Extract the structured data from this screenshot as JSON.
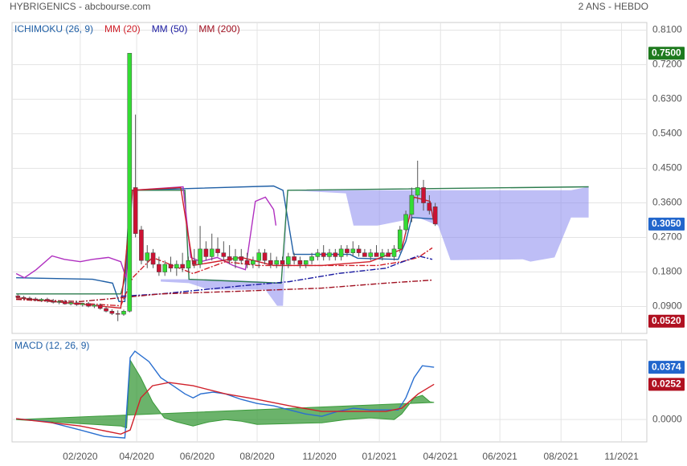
{
  "header": {
    "title": "HYBRIGENICS - abcbourse.com",
    "period": "2 ANS - HEBDO"
  },
  "chart_data": [
    {
      "type": "candlestick",
      "x": [
        1,
        2,
        3,
        4,
        5,
        6,
        7,
        8,
        9,
        10,
        11,
        12,
        13,
        14,
        15,
        16,
        17,
        18,
        19,
        20,
        21,
        22,
        23,
        24,
        25,
        26,
        27,
        28,
        29,
        30,
        31,
        32,
        33,
        34,
        35,
        36,
        37,
        38,
        39,
        40,
        41,
        42,
        43,
        44,
        45,
        46,
        47,
        48,
        49,
        50,
        51,
        52,
        53,
        54,
        55,
        56,
        57,
        58,
        59,
        60,
        61,
        62,
        63,
        64,
        65,
        66,
        67,
        68,
        69,
        70,
        71,
        72
      ],
      "open": [
        0.118,
        0.114,
        0.112,
        0.11,
        0.106,
        0.109,
        0.104,
        0.101,
        0.103,
        0.097,
        0.1,
        0.095,
        0.098,
        0.091,
        0.094,
        0.085,
        0.078,
        0.072,
        0.07,
        0.078,
        0.4,
        0.29,
        0.21,
        0.23,
        0.2,
        0.18,
        0.2,
        0.19,
        0.2,
        0.19,
        0.21,
        0.2,
        0.24,
        0.22,
        0.24,
        0.23,
        0.22,
        0.21,
        0.22,
        0.21,
        0.2,
        0.21,
        0.23,
        0.21,
        0.2,
        0.21,
        0.2,
        0.22,
        0.21,
        0.2,
        0.21,
        0.22,
        0.23,
        0.22,
        0.23,
        0.22,
        0.24,
        0.23,
        0.24,
        0.23,
        0.22,
        0.23,
        0.22,
        0.23,
        0.22,
        0.24,
        0.29,
        0.33,
        0.38,
        0.4,
        0.36,
        0.35
      ],
      "high": [
        0.122,
        0.118,
        0.116,
        0.114,
        0.112,
        0.113,
        0.11,
        0.106,
        0.108,
        0.104,
        0.105,
        0.1,
        0.102,
        0.097,
        0.098,
        0.09,
        0.083,
        0.08,
        0.082,
        0.75,
        0.59,
        0.3,
        0.25,
        0.24,
        0.22,
        0.21,
        0.22,
        0.21,
        0.23,
        0.22,
        0.24,
        0.3,
        0.26,
        0.28,
        0.27,
        0.26,
        0.25,
        0.24,
        0.24,
        0.23,
        0.22,
        0.24,
        0.24,
        0.23,
        0.22,
        0.22,
        0.23,
        0.23,
        0.22,
        0.21,
        0.23,
        0.24,
        0.25,
        0.24,
        0.24,
        0.25,
        0.25,
        0.26,
        0.25,
        0.24,
        0.24,
        0.25,
        0.24,
        0.24,
        0.25,
        0.3,
        0.34,
        0.4,
        0.47,
        0.42,
        0.38,
        0.36
      ],
      "low": [
        0.112,
        0.108,
        0.106,
        0.104,
        0.102,
        0.1,
        0.098,
        0.096,
        0.095,
        0.093,
        0.092,
        0.09,
        0.088,
        0.086,
        0.082,
        0.075,
        0.068,
        0.052,
        0.066,
        0.075,
        0.27,
        0.2,
        0.19,
        0.19,
        0.17,
        0.17,
        0.18,
        0.17,
        0.18,
        0.18,
        0.19,
        0.19,
        0.21,
        0.21,
        0.22,
        0.21,
        0.2,
        0.19,
        0.2,
        0.19,
        0.19,
        0.19,
        0.2,
        0.19,
        0.19,
        0.19,
        0.19,
        0.2,
        0.19,
        0.19,
        0.2,
        0.21,
        0.21,
        0.21,
        0.21,
        0.21,
        0.22,
        0.22,
        0.22,
        0.22,
        0.21,
        0.22,
        0.21,
        0.22,
        0.21,
        0.23,
        0.28,
        0.31,
        0.36,
        0.34,
        0.33,
        0.3
      ],
      "close": [
        0.114,
        0.112,
        0.11,
        0.106,
        0.109,
        0.104,
        0.101,
        0.103,
        0.097,
        0.1,
        0.095,
        0.098,
        0.091,
        0.094,
        0.085,
        0.078,
        0.072,
        0.07,
        0.078,
        0.75,
        0.28,
        0.21,
        0.23,
        0.2,
        0.18,
        0.2,
        0.19,
        0.2,
        0.19,
        0.21,
        0.2,
        0.24,
        0.22,
        0.24,
        0.23,
        0.22,
        0.21,
        0.22,
        0.21,
        0.2,
        0.21,
        0.23,
        0.21,
        0.2,
        0.21,
        0.2,
        0.22,
        0.21,
        0.2,
        0.21,
        0.22,
        0.23,
        0.22,
        0.23,
        0.22,
        0.24,
        0.23,
        0.24,
        0.23,
        0.22,
        0.23,
        0.22,
        0.23,
        0.22,
        0.24,
        0.29,
        0.33,
        0.38,
        0.4,
        0.36,
        0.34,
        0.305
      ],
      "up_color": "#33dd33",
      "down_color": "#cc1133",
      "xlim": [
        0,
        108
      ],
      "ylim": [
        0.02,
        0.83
      ],
      "yticks": [
        {
          "value": 0.09,
          "label": "0.0900"
        },
        {
          "value": 0.18,
          "label": "0.1800"
        },
        {
          "value": 0.27,
          "label": "0.2700"
        },
        {
          "value": 0.36,
          "label": "0.3600"
        },
        {
          "value": 0.45,
          "label": "0.4500"
        },
        {
          "value": 0.54,
          "label": "0.5400"
        },
        {
          "value": 0.63,
          "label": "0.6300"
        },
        {
          "value": 0.72,
          "label": "0.7200"
        },
        {
          "value": 0.81,
          "label": "0.8100"
        }
      ],
      "grid": true,
      "overlays": [
        {
          "name": "ICHIMOKU (26, 9)",
          "color": "#1f5fa6",
          "lines": [
            {
              "color": "#1f5fa6",
              "x": [
                0.7,
                13.7,
                17.1,
                18.2,
                19.2,
                20.1,
                44.5,
                46.1,
                47.9,
                57.5,
                58.8,
                65.7,
                67.0,
                68.0,
                71.8
              ],
              "values": [
                0.165,
                0.161,
                0.151,
                0.103,
                0.103,
                0.393,
                0.404,
                0.393,
                0.226,
                0.226,
                0.216,
                0.213,
                0.26,
                0.322,
                0.318
              ]
            },
            {
              "color": "#2e7d4f",
              "x": [
                0.7,
                18.5,
                19.2,
                20.1,
                29.4,
                30.1,
                45.8,
                46.9,
                98.1
              ],
              "values": [
                0.123,
                0.123,
                0.161,
                0.393,
                0.393,
                0.161,
                0.151,
                0.393,
                0.402
              ]
            },
            {
              "color": "#b030c0",
              "x": [
                0.7,
                2.1,
                4.1,
                6.8,
                8.9,
                11.6,
                13.7,
                16.4,
                18.5,
                19.4,
                20.5,
                29.1,
                30.4,
                32.1,
                34.9,
                37.6,
                39.7,
                41.4,
                43.1,
                44.5,
                44.9
              ],
              "values": [
                0.176,
                0.165,
                0.186,
                0.222,
                0.213,
                0.207,
                0.213,
                0.218,
                0.207,
                0.165,
                0.393,
                0.402,
                0.218,
                0.207,
                0.218,
                0.197,
                0.186,
                0.364,
                0.375,
                0.343,
                0.301
              ]
            },
            {
              "color": "#d0202a",
              "x": [
                0.7,
                18.5,
                20.5,
                28.7,
                30.8,
                39.0,
                44.5,
                52.7,
                60.9,
                66.3,
                68.4,
                71.1,
                71.8
              ],
              "values": [
                0.113,
                0.086,
                0.393,
                0.4,
                0.197,
                0.218,
                0.197,
                0.197,
                0.207,
                0.239,
                0.375,
                0.364,
                0.306
              ]
            }
          ],
          "cloud": {
            "color": "#8888ee",
            "x": [
              25.3,
              30.1,
              33.5,
              43.1,
              45.1,
              46.1,
              46.9,
              56.8,
              58.1,
              62.2,
              69.1,
              72.5,
              74.6,
              86.9,
              88.2,
              92.3,
              93.7,
              95.1,
              98.1
            ],
            "upper": [
              0.161,
              0.161,
              0.161,
              0.155,
              0.151,
              0.151,
              0.393,
              0.393,
              0.393,
              0.393,
              0.393,
              0.393,
              0.393,
              0.393,
              0.393,
              0.393,
              0.393,
              0.393,
              0.402
            ],
            "lower": [
              0.155,
              0.151,
              0.134,
              0.134,
              0.092,
              0.092,
              0.393,
              0.385,
              0.301,
              0.301,
              0.322,
              0.301,
              0.211,
              0.213,
              0.207,
              0.218,
              0.27,
              0.322,
              0.322
            ]
          }
        },
        {
          "name": "MM (20)",
          "color": "#d0202a",
          "style": "dashdot",
          "x": [
            0.7,
            18.5,
            20.5,
            23.9,
            30.8,
            36.3,
            41.7,
            52.7,
            62.2,
            66.3,
            69.1,
            71.5
          ],
          "values": [
            0.109,
            0.092,
            0.165,
            0.218,
            0.176,
            0.207,
            0.197,
            0.197,
            0.197,
            0.207,
            0.218,
            0.243
          ]
        },
        {
          "name": "MM (50)",
          "color": "#1a1aa0",
          "style": "dashdot",
          "x": [
            18.5,
            25.3,
            39.0,
            47.2,
            55.4,
            63.6,
            69.1,
            71.5
          ],
          "values": [
            0.117,
            0.123,
            0.144,
            0.155,
            0.176,
            0.19,
            0.222,
            0.213
          ]
        },
        {
          "name": "MM (200)",
          "color": "#a01020",
          "style": "dashdot",
          "x": [
            0.7,
            11.6,
            18.5,
            25.3,
            39.0,
            52.7,
            63.6,
            71.5
          ],
          "values": [
            0.109,
            0.103,
            0.113,
            0.123,
            0.13,
            0.138,
            0.151,
            0.159
          ]
        }
      ],
      "price_markers": [
        {
          "value": 0.75,
          "label": "0.7500",
          "color": "#1e7a1e"
        },
        {
          "value": 0.305,
          "label": "0.3050",
          "color": "#2266cc"
        },
        {
          "value": 0.052,
          "label": "0.0520",
          "color": "#b01020"
        }
      ]
    },
    {
      "type": "macd",
      "name": "MACD (12, 26, 9)",
      "color": "#1f5fa6",
      "xlim": [
        0,
        108
      ],
      "ylim": [
        -0.016,
        0.057
      ],
      "xticks": [
        {
          "value": 11.6,
          "label": "02/2020"
        },
        {
          "value": 21.2,
          "label": "04/2020"
        },
        {
          "value": 31.5,
          "label": "06/2020"
        },
        {
          "value": 41.7,
          "label": "08/2020"
        },
        {
          "value": 52.3,
          "label": "11/2020"
        },
        {
          "value": 62.5,
          "label": "01/2021"
        },
        {
          "value": 72.9,
          "label": "04/2021"
        },
        {
          "value": 83.0,
          "label": "06/2021"
        },
        {
          "value": 93.4,
          "label": "08/2021"
        },
        {
          "value": 103.7,
          "label": "11/2021"
        }
      ],
      "yticks": [
        {
          "value": 0,
          "label": "0.0000"
        }
      ],
      "series": [
        {
          "color": "#2a6fd0",
          "x": [
            0.7,
            6.2,
            11.6,
            15.7,
            19.2,
            20.1,
            20.9,
            23.3,
            25.3,
            27.4,
            29.4,
            30.8,
            32.1,
            34.2,
            36.3,
            39.0,
            41.7,
            44.5,
            47.2,
            49.9,
            52.7,
            55.4,
            58.1,
            60.9,
            63.6,
            65.7,
            67.0,
            68.4,
            69.8,
            71.8
          ],
          "values": [
            0.0006,
            -0.0017,
            -0.0075,
            -0.0121,
            -0.0132,
            0.0443,
            0.0489,
            0.0414,
            0.0299,
            0.0242,
            0.0184,
            0.0155,
            0.0184,
            0.0196,
            0.0184,
            0.0144,
            0.0115,
            0.0098,
            0.0069,
            0.004,
            0.0023,
            0.0058,
            0.0081,
            0.0069,
            0.0069,
            0.0069,
            0.0155,
            0.0299,
            0.0385,
            0.0374
          ]
        },
        {
          "color": "#d0202a",
          "x": [
            0.7,
            11.6,
            18.5,
            20.1,
            21.9,
            23.9,
            26.7,
            30.8,
            36.3,
            41.7,
            47.2,
            52.7,
            58.1,
            63.6,
            66.3,
            69.1,
            71.8
          ],
          "values": [
            0.0006,
            -0.0046,
            -0.0104,
            -0.0075,
            0.0155,
            0.0242,
            0.0265,
            0.0242,
            0.0184,
            0.0144,
            0.0098,
            0.0058,
            0.0058,
            0.0058,
            0.0081,
            0.0184,
            0.0252
          ]
        }
      ],
      "histogram": {
        "color": "#3a9a3a",
        "x": [
          0.7,
          11.6,
          18.5,
          19.5,
          20.1,
          21.9,
          23.9,
          25.9,
          28.0,
          30.8,
          33.5,
          36.3,
          39.0,
          41.7,
          47.2,
          52.7,
          56.8,
          60.9,
          65.0,
          66.3,
          68.4,
          69.8,
          71.1,
          71.8
        ],
        "values": [
          0,
          -0.0029,
          -0.0046,
          -0.006,
          0.0426,
          0.0299,
          0.0127,
          0.0012,
          -0.0017,
          -0.0046,
          -0.0017,
          0,
          -0.0012,
          -0.0035,
          -0.0029,
          -0.0023,
          0,
          0.0012,
          0,
          0.004,
          0.0155,
          0.0173,
          0.0127,
          0.0122
        ]
      },
      "value_markers": [
        {
          "value": 0.0374,
          "label": "0.0374",
          "color": "#2266cc"
        },
        {
          "value": 0.0252,
          "label": "0.0252",
          "color": "#b01020"
        }
      ]
    }
  ]
}
